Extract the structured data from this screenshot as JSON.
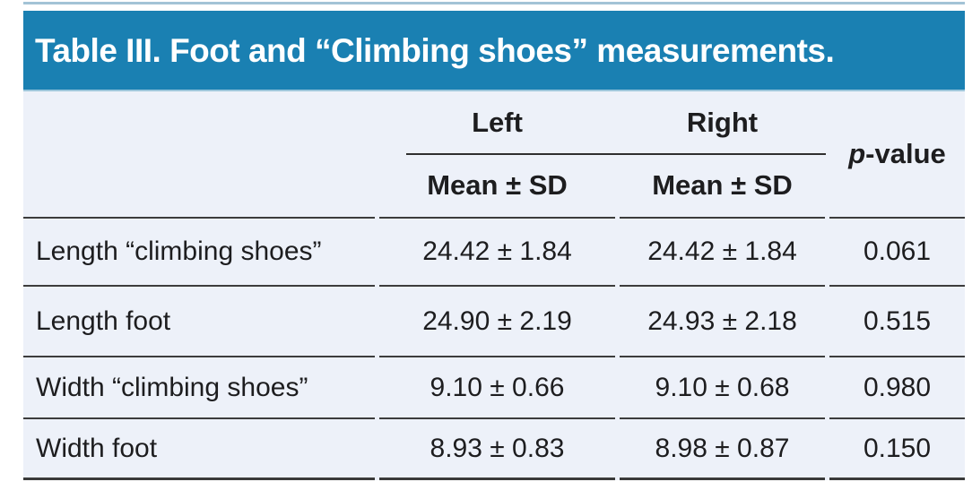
{
  "title": "Table III. Foot and “Climbing shoes” measurements.",
  "colors": {
    "banner_blue": "#1a80b2",
    "body_background": "#edf1f9",
    "top_rule_light_blue": "#a3c3d6",
    "separator_dark": "#3a3a3a",
    "title_text": "#ffffff",
    "body_text": "#1d1d1f"
  },
  "header": {
    "left_group": "Left",
    "right_group": "Right",
    "left_sub": "Mean ± SD",
    "right_sub": "Mean ± SD",
    "p_italic": "p",
    "p_rest": "-value"
  },
  "table": {
    "rows": [
      {
        "label": "Length “climbing shoes”",
        "left": "24.42 ± 1.84",
        "right": "24.42 ± 1.84",
        "p": "0.061"
      },
      {
        "label": "Length foot",
        "left": "24.90 ± 2.19",
        "right": "24.93 ± 2.18",
        "p": "0.515"
      },
      {
        "label": "Width “climbing shoes”",
        "left": "9.10 ± 0.66",
        "right": "9.10 ± 0.68",
        "p": "0.980"
      },
      {
        "label": "Width foot",
        "left": "8.93 ± 0.83",
        "right": "8.98 ± 0.87",
        "p": "0.150"
      }
    ]
  },
  "chart_data": {
    "type": "table",
    "title": "Table III. Foot and “Climbing shoes” measurements.",
    "columns": [
      "",
      "Left Mean ± SD",
      "Right Mean ± SD",
      "p-value"
    ],
    "rows": [
      [
        "Length “climbing shoes”",
        "24.42 ± 1.84",
        "24.42 ± 1.84",
        "0.061"
      ],
      [
        "Length foot",
        "24.90 ± 2.19",
        "24.93 ± 2.18",
        "0.515"
      ],
      [
        "Width “climbing shoes”",
        "9.10 ± 0.66",
        "9.10 ± 0.68",
        "0.980"
      ],
      [
        "Width foot",
        "8.93 ± 0.83",
        "8.98 ± 0.87",
        "0.150"
      ]
    ]
  }
}
